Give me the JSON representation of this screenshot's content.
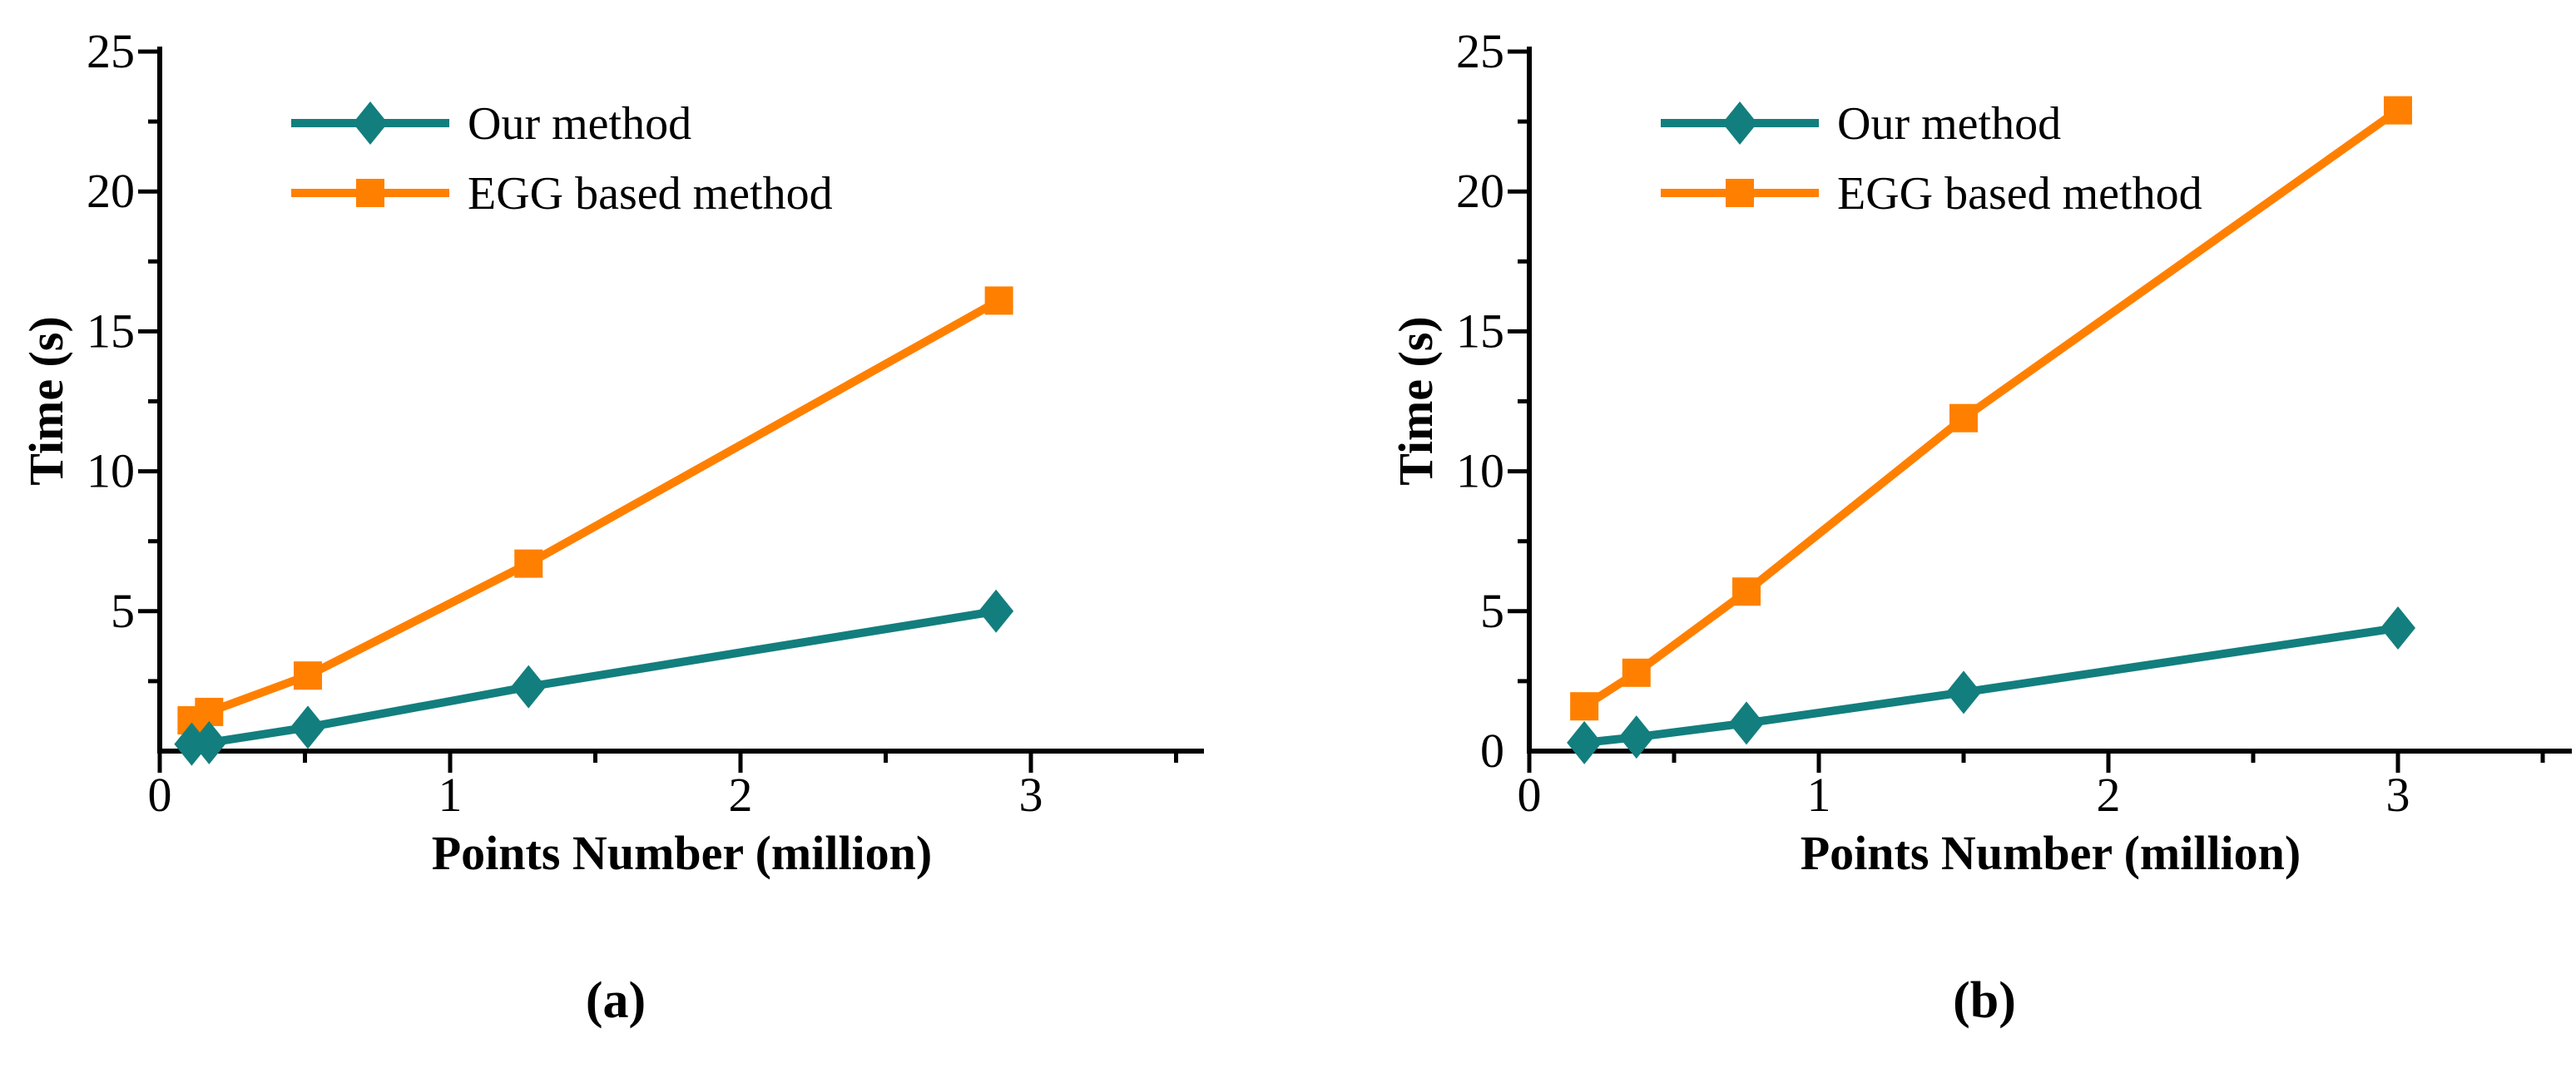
{
  "figure": {
    "caption_a": "(a)",
    "caption_b": "(b)"
  },
  "colors": {
    "our_method": "#137E7E",
    "egg_method": "#FF8000",
    "axis": "#000000",
    "background": "#FFFFFF"
  },
  "chart_data": [
    {
      "id": "a",
      "type": "line",
      "title": "",
      "xlabel": "Points Number (million)",
      "ylabel": "Time (s)",
      "xlim": [
        0,
        3.6
      ],
      "ylim": [
        0,
        25
      ],
      "grid": false,
      "legend_position": "top-left-inside",
      "x_major_ticks": [
        0,
        1,
        2,
        3
      ],
      "x_tick_labels": [
        "0",
        "1",
        "2",
        "3"
      ],
      "x_minor_ticks": [
        0.5,
        1.5,
        2.5,
        3.5
      ],
      "y_major_ticks": [
        5,
        10,
        15,
        20,
        25
      ],
      "y_tick_labels": [
        "5",
        "10",
        "15",
        "20",
        "25"
      ],
      "y_minor_ticks": [
        2.5,
        7.5,
        12.5,
        17.5,
        22.5
      ],
      "series": [
        {
          "name": "EGG based method",
          "marker": "square",
          "color_key": "egg_method",
          "x": [
            0.11,
            0.17,
            0.51,
            1.27,
            2.89
          ],
          "y": [
            1.1,
            1.4,
            2.7,
            6.7,
            16.1
          ]
        },
        {
          "name": "Our method",
          "marker": "diamond",
          "color_key": "our_method",
          "x": [
            0.11,
            0.17,
            0.51,
            1.27,
            2.88
          ],
          "y": [
            0.25,
            0.3,
            0.85,
            2.3,
            5.0
          ]
        }
      ],
      "legend_order": [
        "Our method",
        "EGG based method"
      ]
    },
    {
      "id": "b",
      "type": "line",
      "title": "",
      "xlabel": "Points Number (million)",
      "ylabel": "Time (s)",
      "xlim": [
        0,
        3.6
      ],
      "ylim": [
        0,
        25
      ],
      "grid": false,
      "legend_position": "top-left-inside",
      "x_major_ticks": [
        0,
        1,
        2,
        3
      ],
      "x_tick_labels": [
        "0",
        "1",
        "2",
        "3"
      ],
      "x_minor_ticks": [
        0.5,
        1.5,
        2.5,
        3.5
      ],
      "y_major_ticks": [
        0,
        5,
        10,
        15,
        20,
        25
      ],
      "y_tick_labels": [
        "0",
        "5",
        "10",
        "15",
        "20",
        "25"
      ],
      "y_minor_ticks": [
        2.5,
        7.5,
        12.5,
        17.5,
        22.5
      ],
      "series": [
        {
          "name": "EGG based method",
          "marker": "square",
          "color_key": "egg_method",
          "x": [
            0.19,
            0.37,
            0.75,
            1.5,
            3.0
          ],
          "y": [
            1.6,
            2.8,
            5.7,
            11.9,
            22.9
          ]
        },
        {
          "name": "Our method",
          "marker": "diamond",
          "color_key": "our_method",
          "x": [
            0.19,
            0.37,
            0.75,
            1.5,
            3.0
          ],
          "y": [
            0.3,
            0.5,
            1.0,
            2.1,
            4.4
          ]
        }
      ],
      "legend_order": [
        "Our method",
        "EGG based method"
      ]
    }
  ]
}
